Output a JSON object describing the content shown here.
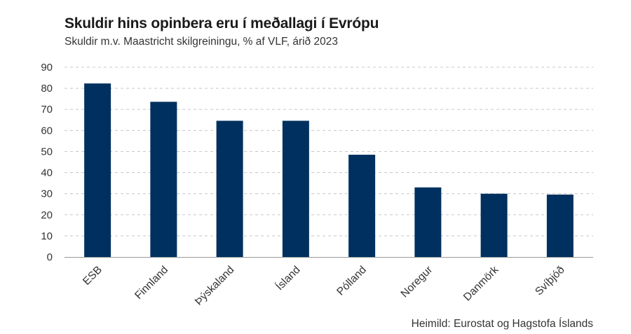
{
  "chart": {
    "title": "Skuldir hins opinbera eru í meðallagi í Evrópu",
    "subtitle": "Skuldir m.v. Maastricht skilgreiningu, % af VLF, árið 2023",
    "source": "Heimild: Eurostat og Hagstofa Íslands",
    "bar_color": "#00305f"
  },
  "chart_data": {
    "type": "bar",
    "title": "Skuldir hins opinbera eru í meðallagi í Evrópu",
    "subtitle": "Skuldir m.v. Maastricht skilgreiningu, % af VLF, árið 2023",
    "categories": [
      "ESB",
      "Finnland",
      "Þýskaland",
      "Ísland",
      "Pólland",
      "Noregur",
      "Danmörk",
      "Svíþjóð"
    ],
    "values": [
      82.3,
      73.6,
      64.6,
      64.6,
      48.5,
      33.0,
      30.0,
      29.6
    ],
    "xlabel": "",
    "ylabel": "",
    "ylim": [
      0,
      90
    ],
    "yticks": [
      0,
      10,
      20,
      30,
      40,
      50,
      60,
      70,
      80,
      90
    ],
    "grid": true,
    "legend": "none",
    "category_label_rotation_deg": -45
  }
}
